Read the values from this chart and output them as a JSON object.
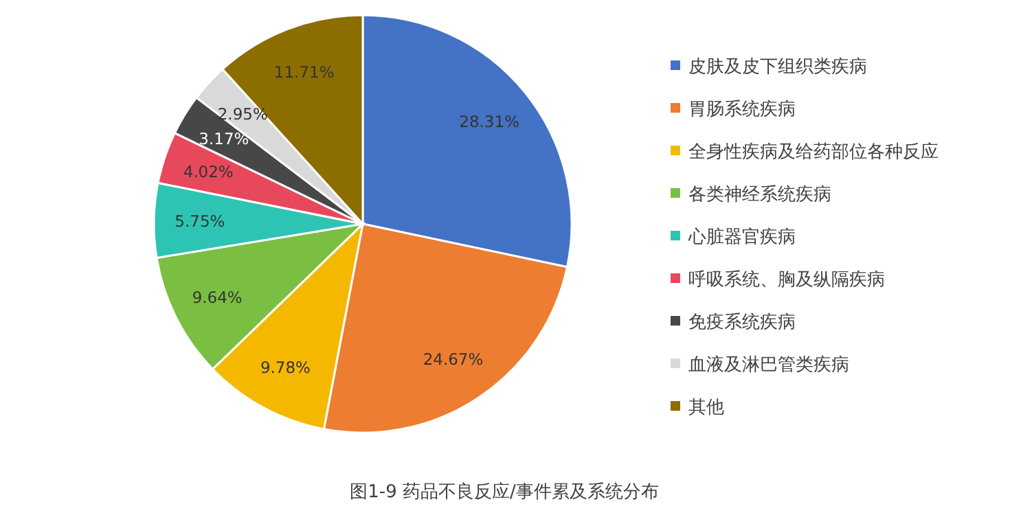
{
  "chart_data": {
    "type": "pie",
    "title": "图1-9 药品不良反应/事件累及系统分布",
    "categories": [
      "皮肤及皮下组织类疾病",
      "胃肠系统疾病",
      "全身性疾病及给药部位各种反应",
      "各类神经系统疾病",
      "心脏器官疾病",
      "呼吸系统、胸及纵隔疾病",
      "免疫系统疾病",
      "血液及淋巴管类疾病",
      "其他"
    ],
    "values": [
      28.31,
      24.67,
      9.78,
      9.64,
      5.75,
      4.02,
      3.17,
      2.95,
      11.71
    ],
    "colors": [
      "#4472c4",
      "#ed7d31",
      "#f5b800",
      "#7abf42",
      "#2ec4b4",
      "#e8485c",
      "#474747",
      "#d9d9d9",
      "#8c6d00"
    ],
    "value_labels": [
      "28.31%",
      "24.67%",
      "9.78%",
      "9.64%",
      "5.75%",
      "4.02%",
      "3.17%",
      "2.95%",
      "11.71%"
    ],
    "legend": "right"
  }
}
